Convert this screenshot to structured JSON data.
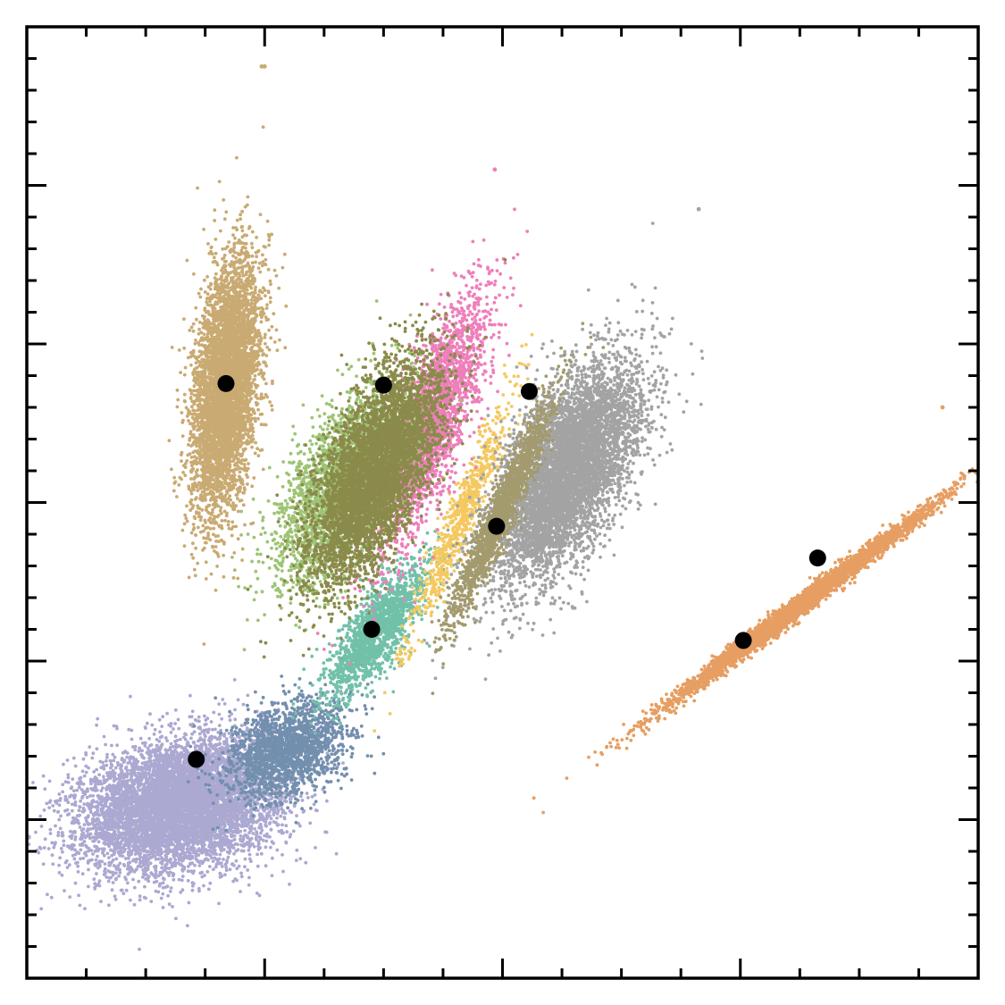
{
  "chart_data": {
    "type": "scatter",
    "title": "",
    "xlabel": "",
    "ylabel": "",
    "xlim": [
      0,
      16
    ],
    "ylim": [
      0,
      6
    ],
    "x_major_ticks": [
      4,
      8,
      12
    ],
    "x_minor_ticks": [
      1,
      2,
      3,
      5,
      6,
      7,
      9,
      10,
      11,
      13,
      14,
      15
    ],
    "y_major_ticks": [
      1,
      2,
      3,
      4,
      5
    ],
    "y_minor_ticks": [
      0.2,
      0.4,
      0.6,
      0.8,
      1.2,
      1.4,
      1.6,
      1.8,
      2.2,
      2.4,
      2.6,
      2.8,
      3.2,
      3.4,
      3.6,
      3.8,
      4.2,
      4.4,
      4.6,
      4.8,
      5.2,
      5.4,
      5.6,
      5.8
    ],
    "grid": false,
    "legend": "none",
    "clusters": [
      {
        "color": "#aba8d1",
        "points": 7000,
        "center": [
          2.6,
          1.1
        ],
        "sd_major": 0.85,
        "sd_minor": 0.52,
        "angle_deg": 15
      },
      {
        "color": "#738fae",
        "points": 1800,
        "center": [
          4.4,
          1.45
        ],
        "sd_major": 0.55,
        "sd_minor": 0.35,
        "angle_deg": 30
      },
      {
        "color": "#71c1a9",
        "points": 1600,
        "center": [
          5.9,
          2.2
        ],
        "sd_major": 0.65,
        "sd_minor": 0.22,
        "angle_deg": 55
      },
      {
        "color": "#f5c960",
        "points": 700,
        "center": [
          7.3,
          2.9
        ],
        "sd_major": 1.1,
        "sd_minor": 0.12,
        "angle_deg": 68
      },
      {
        "color": "#ee7fbb",
        "points": 2600,
        "center": [
          6.8,
          3.5
        ],
        "sd_major": 1.15,
        "sd_minor": 0.28,
        "angle_deg": 70
      },
      {
        "color": "#9dc474",
        "points": 2600,
        "center": [
          5.3,
          3.1
        ],
        "sd_major": 0.9,
        "sd_minor": 0.4,
        "angle_deg": 62
      },
      {
        "color": "#c9aa72",
        "points": 5000,
        "center": [
          3.35,
          3.72
        ],
        "sd_major": 1.05,
        "sd_minor": 0.26,
        "angle_deg": 84
      },
      {
        "color": "#a3a3a3",
        "points": 6000,
        "center": [
          9.1,
          3.2
        ],
        "sd_major": 1.0,
        "sd_minor": 0.45,
        "angle_deg": 62
      },
      {
        "color": "#8a8b4a",
        "points": 5000,
        "center": [
          5.85,
          3.2
        ],
        "sd_major": 1.0,
        "sd_minor": 0.38,
        "angle_deg": 65
      },
      {
        "color": "#a39a6e",
        "points": 1500,
        "center": [
          8.0,
          2.95
        ],
        "sd_major": 1.05,
        "sd_minor": 0.12,
        "angle_deg": 66
      },
      {
        "color": "#e69e62",
        "points": 3500,
        "center": [
          13.0,
          2.35
        ],
        "sd_major": 1.45,
        "sd_minor": 0.075,
        "angle_deg": 37
      }
    ],
    "outliers": [
      {
        "x": 4.0,
        "y": 5.75,
        "color": "#c9aa72"
      },
      {
        "x": 3.95,
        "y": 5.75,
        "color": "#c9aa72"
      },
      {
        "x": 7.87,
        "y": 5.1,
        "color": "#ee7fbb"
      },
      {
        "x": 11.3,
        "y": 4.85,
        "color": "#a3a3a3"
      },
      {
        "x": 15.4,
        "y": 3.6,
        "color": "#e69e62"
      },
      {
        "x": 0.6,
        "y": 0.9,
        "color": "#aba8d1"
      }
    ],
    "centroids": [
      {
        "x": 3.35,
        "y": 3.75
      },
      {
        "x": 6.0,
        "y": 3.74
      },
      {
        "x": 8.45,
        "y": 3.7
      },
      {
        "x": 7.9,
        "y": 2.85
      },
      {
        "x": 5.8,
        "y": 2.2
      },
      {
        "x": 2.85,
        "y": 1.38
      },
      {
        "x": 12.05,
        "y": 2.13
      },
      {
        "x": 13.3,
        "y": 2.65
      }
    ]
  }
}
